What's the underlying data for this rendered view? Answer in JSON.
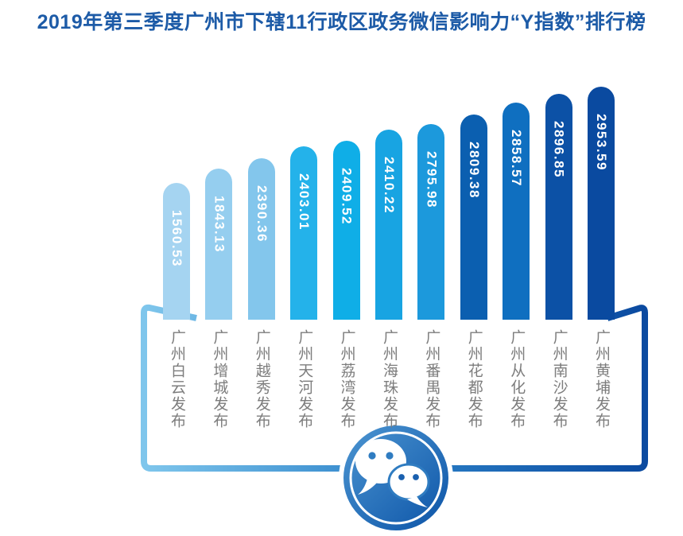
{
  "title": "2019年第三季度广州市下辖11行政区政务微信影响力“Y指数”排行榜",
  "chart_data": {
    "type": "bar",
    "title": "2019年第三季度广州市下辖11行政区政务微信影响力“Y指数”排行榜",
    "orientation": "vertical",
    "grid": false,
    "legend": "none",
    "xlabel": "",
    "ylabel": "",
    "ylim": [
      0,
      3000
    ],
    "categories": [
      "广州白云发布",
      "广州增城发布",
      "广州越秀发布",
      "广州天河发布",
      "广州荔湾发布",
      "广州海珠发布",
      "广州番禺发布",
      "广州花都发布",
      "广州从化发布",
      "广州南沙发布",
      "广州黄埔发布"
    ],
    "values": [
      1560.53,
      1843.13,
      2390.36,
      2403.01,
      2409.52,
      2410.22,
      2795.98,
      2809.38,
      2858.57,
      2896.85,
      2953.59
    ],
    "value_labels": [
      "1560.53",
      "1843.13",
      "2390.36",
      "2403.01",
      "2409.52",
      "2410.22",
      "2795.98",
      "2809.38",
      "2858.57",
      "2896.85",
      "2953.59"
    ],
    "bar_colors": [
      "#a5d4f1",
      "#95ceef",
      "#83c6ec",
      "#24b2ea",
      "#0faee7",
      "#18a4e2",
      "#1c99dc",
      "#0b5fb0",
      "#0f6fc0",
      "#0c51a6",
      "#0a4aa0"
    ]
  },
  "icons": {
    "badge_icon": "wechat-logo"
  },
  "colors": {
    "title_text": "#1d5ba7",
    "value_label_text": "#ffffff",
    "category_label_text": "#7d7d7d",
    "panel_border_gradient_start": "#7fc6ec",
    "panel_border_gradient_end": "#0b4aa0",
    "badge_gradient_start": "#4790ce",
    "badge_gradient_end": "#0d55a8",
    "background": "#ffffff"
  }
}
